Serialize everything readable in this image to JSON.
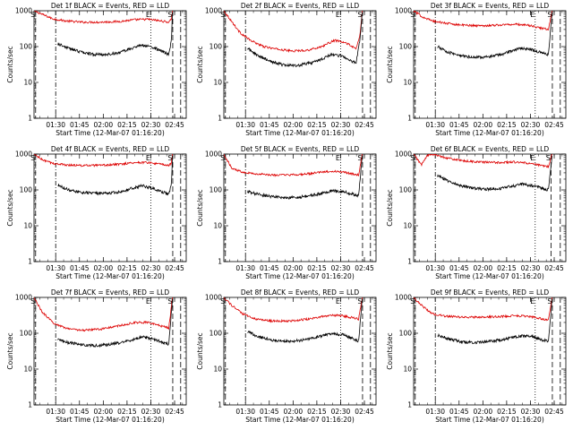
{
  "chart_data": {
    "type": "line",
    "y_scale": "log",
    "ylim": [
      1,
      1000
    ],
    "y_ticks": [
      1,
      10,
      100,
      1000
    ],
    "y_tick_labels": [
      "1",
      "10",
      "100",
      "1000"
    ],
    "ylabel": "Counts/sec",
    "xlabel": "Start Time (12-Mar-07 01:16:20)",
    "x_tick_labels": [
      "01:30",
      "01:45",
      "02:00",
      "02:15",
      "02:30",
      "02:45"
    ],
    "x_ticks_sec": [
      820,
      1720,
      2620,
      3520,
      4420,
      5320
    ],
    "xlim_sec": [
      0,
      5760
    ],
    "colors": {
      "events": "#000000",
      "lld": "#dd0000",
      "axes": "#000000"
    },
    "series_legend": "BLACK = Events, RED = LLD",
    "panels": [
      {
        "title": "Det 1f BLACK = Events, RED = LLD",
        "markers": [
          {
            "label": "S",
            "x_sec": 60,
            "style": "dashed"
          },
          {
            "label": "",
            "x_sec": 820,
            "style": "dashdot"
          },
          {
            "label": "E",
            "x_sec": 4420,
            "style": "dotted"
          },
          {
            "label": "S",
            "x_sec": 5250,
            "style": "dashed"
          },
          {
            "label": "",
            "x_sec": 5550,
            "style": "dashed"
          }
        ],
        "events": {
          "x_sec": [
            900,
            1300,
            1800,
            2300,
            2800,
            3300,
            3700,
            4100,
            4500,
            4900,
            5100,
            5200,
            5240
          ],
          "y": [
            120,
            90,
            70,
            60,
            60,
            70,
            90,
            110,
            95,
            70,
            60,
            150,
            900
          ]
        },
        "lld": {
          "x_sec": [
            0,
            300,
            700,
            1200,
            1800,
            2500,
            3200,
            3800,
            4300,
            4800,
            5100,
            5200,
            5240
          ],
          "y": [
            1000,
            800,
            600,
            520,
            480,
            480,
            500,
            560,
            580,
            520,
            480,
            600,
            1000
          ]
        }
      },
      {
        "title": "Det 2f BLACK = Events, RED = LLD",
        "markers": [
          {
            "label": "S",
            "x_sec": 60,
            "style": "dashed"
          },
          {
            "label": "",
            "x_sec": 820,
            "style": "dashdot"
          },
          {
            "label": "E",
            "x_sec": 4420,
            "style": "dotted"
          },
          {
            "label": "S",
            "x_sec": 5250,
            "style": "dashed"
          },
          {
            "label": "",
            "x_sec": 5550,
            "style": "dashed"
          }
        ],
        "events": {
          "x_sec": [
            900,
            1300,
            1800,
            2300,
            2800,
            3300,
            3700,
            4100,
            4500,
            4800,
            5000,
            5150,
            5240
          ],
          "y": [
            90,
            55,
            38,
            30,
            30,
            35,
            45,
            60,
            55,
            40,
            35,
            150,
            900
          ]
        },
        "lld": {
          "x_sec": [
            0,
            300,
            600,
            1000,
            1500,
            2000,
            2600,
            3200,
            3700,
            4200,
            4700,
            5000,
            5150,
            5240
          ],
          "y": [
            1000,
            500,
            250,
            150,
            100,
            85,
            75,
            80,
            100,
            150,
            120,
            85,
            200,
            1000
          ]
        }
      },
      {
        "title": "Det 3f BLACK = Events, RED = LLD",
        "markers": [
          {
            "label": "S",
            "x_sec": 60,
            "style": "dashed"
          },
          {
            "label": "",
            "x_sec": 820,
            "style": "dashdot"
          },
          {
            "label": "E",
            "x_sec": 4600,
            "style": "dotted"
          },
          {
            "label": "S",
            "x_sec": 5250,
            "style": "dashed"
          },
          {
            "label": "",
            "x_sec": 5550,
            "style": "dashed"
          }
        ],
        "events": {
          "x_sec": [
            900,
            1300,
            1800,
            2300,
            2800,
            3300,
            3700,
            4100,
            4500,
            4900,
            5100,
            5240
          ],
          "y": [
            100,
            70,
            55,
            50,
            52,
            60,
            75,
            90,
            80,
            65,
            60,
            900
          ]
        },
        "lld": {
          "x_sec": [
            0,
            300,
            700,
            1200,
            1800,
            2500,
            3200,
            3800,
            4300,
            4800,
            5100,
            5240
          ],
          "y": [
            1000,
            700,
            520,
            450,
            400,
            380,
            400,
            420,
            400,
            330,
            300,
            1000
          ]
        }
      },
      {
        "title": "Det 4f BLACK = Events, RED = LLD",
        "markers": [
          {
            "label": "S",
            "x_sec": 60,
            "style": "dashed"
          },
          {
            "label": "",
            "x_sec": 820,
            "style": "dashdot"
          },
          {
            "label": "E",
            "x_sec": 4420,
            "style": "dotted"
          },
          {
            "label": "S",
            "x_sec": 5250,
            "style": "dashed"
          },
          {
            "label": "",
            "x_sec": 5550,
            "style": "dashed"
          }
        ],
        "events": {
          "x_sec": [
            900,
            1300,
            1800,
            2300,
            2800,
            3300,
            3700,
            4100,
            4500,
            4900,
            5100,
            5200,
            5240
          ],
          "y": [
            140,
            100,
            85,
            80,
            80,
            90,
            110,
            130,
            110,
            85,
            75,
            150,
            900
          ]
        },
        "lld": {
          "x_sec": [
            0,
            300,
            700,
            1200,
            1800,
            2500,
            3200,
            3800,
            4300,
            4800,
            5100,
            5200,
            5240
          ],
          "y": [
            1000,
            700,
            550,
            500,
            480,
            480,
            520,
            580,
            580,
            520,
            480,
            550,
            1000
          ]
        }
      },
      {
        "title": "Det 5f BLACK = Events, RED = LLD",
        "markers": [
          {
            "label": "S",
            "x_sec": 60,
            "style": "dashed"
          },
          {
            "label": "",
            "x_sec": 820,
            "style": "dashdot"
          },
          {
            "label": "E",
            "x_sec": 4420,
            "style": "dotted"
          },
          {
            "label": "S",
            "x_sec": 5250,
            "style": "dashed"
          },
          {
            "label": "",
            "x_sec": 5550,
            "style": "dashed"
          }
        ],
        "events": {
          "x_sec": [
            900,
            1300,
            1800,
            2300,
            2800,
            3300,
            3700,
            4100,
            4500,
            4900,
            5100,
            5240
          ],
          "y": [
            90,
            75,
            65,
            60,
            62,
            70,
            80,
            95,
            90,
            75,
            70,
            900
          ]
        },
        "lld": {
          "x_sec": [
            0,
            300,
            700,
            1200,
            1800,
            2500,
            3200,
            3800,
            4300,
            4800,
            5100,
            5240
          ],
          "y": [
            1000,
            400,
            320,
            280,
            260,
            260,
            280,
            320,
            330,
            290,
            260,
            1000
          ]
        }
      },
      {
        "title": "Det 6f BLACK = Events, RED = LLD",
        "markers": [
          {
            "label": "S",
            "x_sec": 60,
            "style": "dashed"
          },
          {
            "label": "",
            "x_sec": 820,
            "style": "dashdot"
          },
          {
            "label": "E",
            "x_sec": 4600,
            "style": "dotted"
          },
          {
            "label": "S",
            "x_sec": 5200,
            "style": "dashed"
          },
          {
            "label": "",
            "x_sec": 5550,
            "style": "dashed"
          }
        ],
        "events": {
          "x_sec": [
            900,
            1300,
            1800,
            2300,
            2800,
            3300,
            3700,
            4100,
            4500,
            4900,
            5100,
            5240
          ],
          "y": [
            250,
            180,
            130,
            110,
            105,
            110,
            125,
            145,
            130,
            110,
            100,
            900
          ]
        },
        "lld": {
          "x_sec": [
            0,
            150,
            300,
            500,
            700,
            1200,
            1800,
            2500,
            3200,
            3800,
            4300,
            4800,
            5100,
            5240
          ],
          "y": [
            1000,
            700,
            500,
            900,
            1000,
            800,
            650,
            600,
            580,
            600,
            560,
            480,
            450,
            1000
          ]
        }
      },
      {
        "title": "Det 7f BLACK = Events, RED = LLD",
        "markers": [
          {
            "label": "S",
            "x_sec": 60,
            "style": "dashed"
          },
          {
            "label": "",
            "x_sec": 820,
            "style": "dashdot"
          },
          {
            "label": "E",
            "x_sec": 4420,
            "style": "dotted"
          },
          {
            "label": "S",
            "x_sec": 5250,
            "style": "dashed"
          },
          {
            "label": "",
            "x_sec": 5550,
            "style": "dashed"
          }
        ],
        "events": {
          "x_sec": [
            900,
            1300,
            1800,
            2300,
            2800,
            3300,
            3700,
            4100,
            4500,
            4900,
            5100,
            5240
          ],
          "y": [
            70,
            55,
            48,
            45,
            48,
            55,
            65,
            80,
            70,
            55,
            50,
            900
          ]
        },
        "lld": {
          "x_sec": [
            0,
            300,
            700,
            1200,
            1800,
            2500,
            3200,
            3800,
            4300,
            4800,
            5100,
            5240
          ],
          "y": [
            1000,
            400,
            200,
            140,
            120,
            130,
            160,
            200,
            200,
            160,
            140,
            1000
          ]
        }
      },
      {
        "title": "Det 8f BLACK = Events, RED = LLD",
        "markers": [
          {
            "label": "S",
            "x_sec": 60,
            "style": "dashed"
          },
          {
            "label": "",
            "x_sec": 820,
            "style": "dashdot"
          },
          {
            "label": "E",
            "x_sec": 4420,
            "style": "dotted"
          },
          {
            "label": "S",
            "x_sec": 5250,
            "style": "dashed"
          },
          {
            "label": "",
            "x_sec": 5550,
            "style": "dashed"
          }
        ],
        "events": {
          "x_sec": [
            900,
            1300,
            1800,
            2300,
            2800,
            3300,
            3700,
            4100,
            4500,
            4900,
            5100,
            5240
          ],
          "y": [
            110,
            80,
            65,
            60,
            62,
            70,
            85,
            100,
            90,
            70,
            60,
            900
          ]
        },
        "lld": {
          "x_sec": [
            0,
            300,
            700,
            1200,
            1800,
            2500,
            3200,
            3800,
            4300,
            4800,
            5100,
            5240
          ],
          "y": [
            1000,
            600,
            350,
            250,
            220,
            220,
            250,
            300,
            320,
            280,
            250,
            1000
          ]
        }
      },
      {
        "title": "Det 9f BLACK = Events, RED = LLD",
        "markers": [
          {
            "label": "S",
            "x_sec": 60,
            "style": "dashed"
          },
          {
            "label": "",
            "x_sec": 820,
            "style": "dashdot"
          },
          {
            "label": "E",
            "x_sec": 4600,
            "style": "dotted"
          },
          {
            "label": "S",
            "x_sec": 5250,
            "style": "dashed"
          },
          {
            "label": "",
            "x_sec": 5550,
            "style": "dashed"
          }
        ],
        "events": {
          "x_sec": [
            900,
            1300,
            1800,
            2300,
            2800,
            3300,
            3700,
            4100,
            4500,
            4900,
            5100,
            5240
          ],
          "y": [
            90,
            70,
            58,
            55,
            58,
            65,
            75,
            85,
            80,
            65,
            60,
            900
          ]
        },
        "lld": {
          "x_sec": [
            0,
            300,
            700,
            1200,
            1800,
            2500,
            3200,
            3800,
            4300,
            4800,
            5100,
            5240
          ],
          "y": [
            1000,
            600,
            350,
            300,
            280,
            280,
            290,
            310,
            300,
            260,
            230,
            1000
          ]
        }
      }
    ]
  }
}
